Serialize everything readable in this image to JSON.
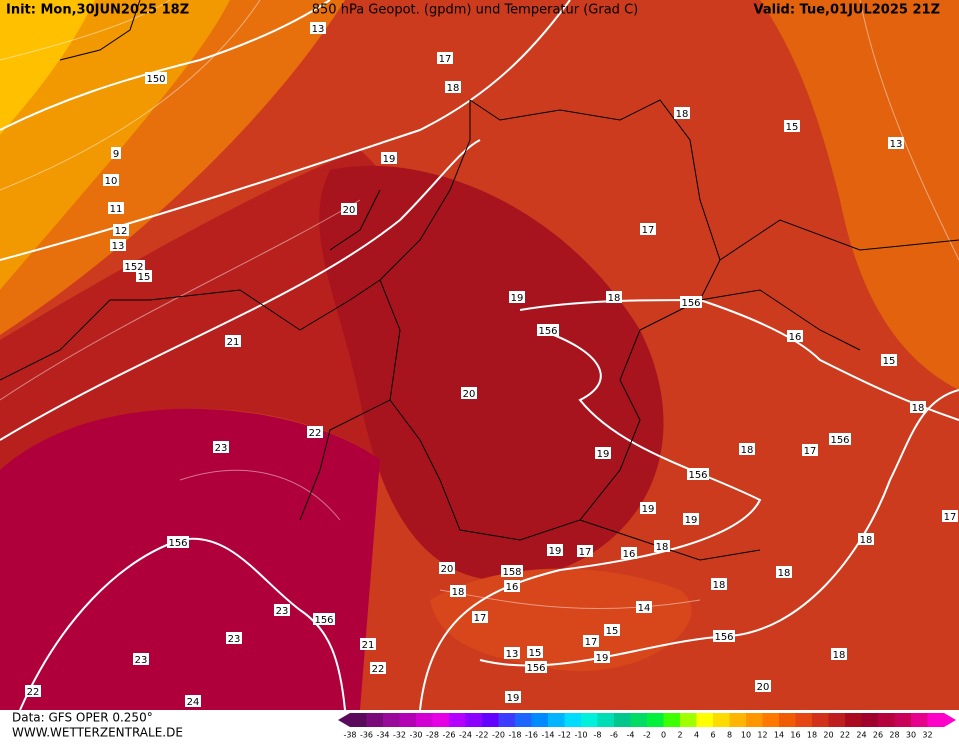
{
  "header": {
    "init": "Init: Mon,30JUN2025 18Z",
    "title": "850 hPa Geopot. (gpdm) und Temperatur (Grad C)",
    "valid": "Valid: Tue,01JUL2025 21Z"
  },
  "map_labels": [
    "13",
    "17",
    "18",
    "150",
    "9",
    "10",
    "11",
    "12",
    "13",
    "152",
    "15",
    "18",
    "15",
    "13",
    "19",
    "20",
    "17",
    "19",
    "18",
    "156",
    "156",
    "16",
    "15",
    "21",
    "20",
    "18",
    "22",
    "23",
    "156",
    "17",
    "18",
    "19",
    "156",
    "19",
    "19",
    "17",
    "156",
    "18",
    "19",
    "17",
    "16",
    "18",
    "20",
    "158",
    "18",
    "16",
    "18",
    "18",
    "23",
    "14",
    "17",
    "156",
    "15",
    "23",
    "17",
    "156",
    "21",
    "13",
    "15",
    "19",
    "18",
    "23",
    "156",
    "22",
    "20",
    "22",
    "24",
    "19"
  ],
  "footer": {
    "source": "Data: GFS OPER 0.250°",
    "site": "WWW.WETTERZENTRALE.DE"
  },
  "colorbar": {
    "labels": [
      -38,
      -36,
      -34,
      -32,
      -30,
      -28,
      -26,
      -24,
      -22,
      -20,
      -18,
      -16,
      -14,
      -12,
      -10,
      -8,
      -6,
      -4,
      -2,
      0,
      2,
      4,
      6,
      8,
      10,
      12,
      14,
      16,
      18,
      20,
      22,
      24,
      26,
      28,
      30,
      32
    ],
    "colors": [
      "#5a0a5a",
      "#7a0a7a",
      "#9a0a9a",
      "#b400b4",
      "#d200d2",
      "#e600e6",
      "#b400ff",
      "#8c00ff",
      "#6400ff",
      "#3c3cff",
      "#1e64ff",
      "#008cff",
      "#00b4ff",
      "#00dcff",
      "#00f0dc",
      "#00dcb4",
      "#00c88c",
      "#00dc64",
      "#00f03c",
      "#3cff00",
      "#a0ff00",
      "#ffff00",
      "#ffdc00",
      "#ffb400",
      "#ff9600",
      "#ff7800",
      "#f05a00",
      "#e64614",
      "#d23219",
      "#be1e1e",
      "#aa0a1e",
      "#a0002d",
      "#b4003c",
      "#c8005a",
      "#e6008c",
      "#ff00c8"
    ]
  }
}
